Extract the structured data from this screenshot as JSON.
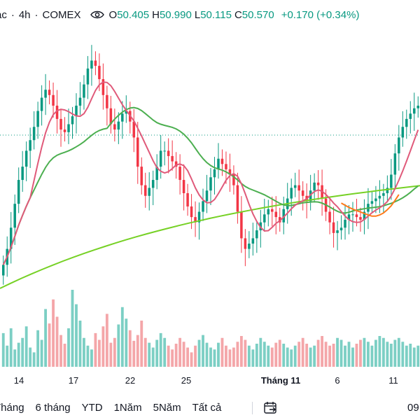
{
  "header": {
    "symbol": "ạc",
    "separator1": "·",
    "interval": "4h",
    "separator2": "·",
    "exchange": "COMEX",
    "open_label": "O",
    "open": "50.405",
    "high_label": "H",
    "high": "50.990",
    "low_label": "L",
    "low": "50.115",
    "close_label": "C",
    "close": "50.570",
    "change": "+0.170 (+0.34%)"
  },
  "x_axis": [
    "14",
    "17",
    "22",
    "25",
    "Tháng 11",
    "6",
    "11"
  ],
  "range_buttons": [
    "Tháng",
    "6 tháng",
    "YTD",
    "1Năm",
    "5Năm",
    "Tất cả"
  ],
  "time_right": "09",
  "colors": {
    "up": "#089981",
    "down": "#f23645",
    "up_vol": "#7ccfc4",
    "down_vol": "#f4a6a9",
    "ma_fast": "#e05a7a",
    "ma_mid": "#4caf50",
    "ma_slow": "#76d125",
    "ma_orange": "#ff7a1a"
  },
  "chart_data": {
    "type": "candlestick",
    "candles_close_trend": [
      44.6,
      45.2,
      46.0,
      46.9,
      47.8,
      48.3,
      48.9,
      49.3,
      49.8,
      50.4,
      50.9,
      51.2,
      51.0,
      50.6,
      50.1,
      49.7,
      49.6,
      49.9,
      50.2,
      50.6,
      50.9,
      51.4,
      52.0,
      52.3,
      52.1,
      51.6,
      51.0,
      50.5,
      49.9,
      49.7,
      50.0,
      50.3,
      50.4,
      50.0,
      49.4,
      48.3,
      47.6,
      47.2,
      47.5,
      47.8,
      48.3,
      48.9,
      48.9,
      48.7,
      48.5,
      48.3,
      47.8,
      47.3,
      46.8,
      46.4,
      46.2,
      46.6,
      47.0,
      47.4,
      47.9,
      48.2,
      48.6,
      48.4,
      48.2,
      48.0,
      47.6,
      46.6,
      45.6,
      45.2,
      45.4,
      45.6,
      45.9,
      46.2,
      46.5,
      46.7,
      46.6,
      46.4,
      46.2,
      46.7,
      47.1,
      47.5,
      47.6,
      47.4,
      47.2,
      47.0,
      47.4,
      47.7,
      47.6,
      47.1,
      46.6,
      46.2,
      45.8,
      45.9,
      46.0,
      46.3,
      46.5,
      46.5,
      46.4,
      46.3,
      46.6,
      46.9,
      47.0,
      47.1,
      47.2,
      47.3,
      47.5,
      48.0,
      48.8,
      49.4,
      49.8,
      50.1,
      50.3,
      50.5,
      50.6
    ],
    "volume_trend": [
      35,
      22,
      40,
      18,
      25,
      30,
      42,
      20,
      15,
      38,
      28,
      60,
      45,
      70,
      52,
      33,
      24,
      40,
      80,
      65,
      48,
      30,
      22,
      18,
      35,
      28,
      42,
      55,
      25,
      30,
      44,
      62,
      50,
      38,
      27,
      33,
      48,
      30,
      25,
      20,
      28,
      35,
      30,
      22,
      18,
      24,
      30,
      26,
      20,
      15,
      22,
      28,
      33,
      25,
      20,
      18,
      25,
      30,
      22,
      18,
      20,
      26,
      32,
      28,
      22,
      18,
      24,
      30,
      26,
      22,
      20,
      25,
      28,
      24,
      20,
      18,
      22,
      26,
      30,
      24,
      20,
      22,
      28,
      32,
      26,
      22,
      24,
      30,
      28,
      22,
      26,
      20,
      24,
      28,
      30,
      26,
      22,
      28,
      32,
      30,
      26,
      24,
      28,
      30,
      26,
      22,
      24,
      20,
      22
    ]
  }
}
